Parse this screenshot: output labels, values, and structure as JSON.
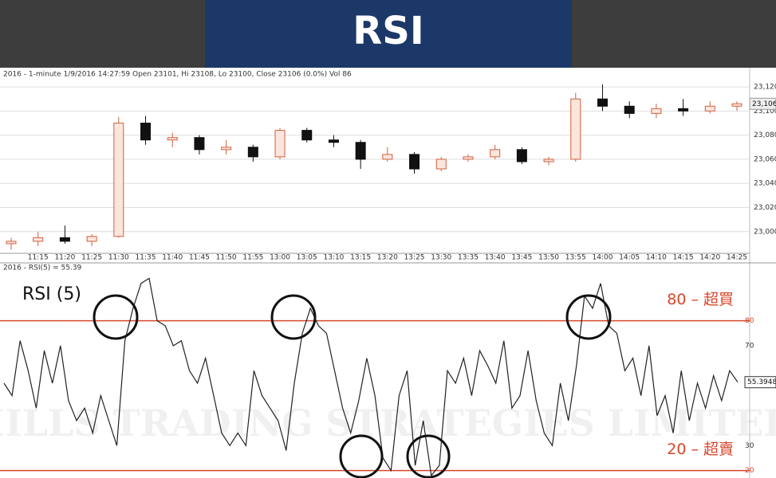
{
  "page_title": "RSI",
  "watermark": "HILLS TRADING STRATEGIES LIMITED",
  "chart_data": [
    {
      "type": "candlestick",
      "subtitle": "2016 - 1-minute 1/9/2016 14:27:59 Open 23101, Hi 23108, Lo 23100, Close 23106 (0.0%) Vol 86",
      "categories": [
        null,
        "11:15",
        "11:20",
        "11:25",
        "11:30",
        "11:35",
        "11:40",
        "11:45",
        "11:50",
        "11:55",
        "13:00",
        "13:05",
        "13:10",
        "13:15",
        "13:20",
        "13:25",
        "13:30",
        "13:35",
        "13:40",
        "13:45",
        "13:50",
        "13:55",
        "14:00",
        "14:05",
        "14:10",
        "14:15",
        "14:20",
        "14:25"
      ],
      "open": [
        22990,
        22992,
        22995,
        22992,
        22996,
        23090,
        23076,
        23078,
        23068,
        23070,
        23062,
        23084,
        23076,
        23074,
        23060,
        23064,
        23052,
        23060,
        23062,
        23068,
        23058,
        23060,
        23110,
        23104,
        23098,
        23102,
        23100,
        23104
      ],
      "high": [
        22995,
        23000,
        23005,
        22998,
        23095,
        23096,
        23082,
        23080,
        23076,
        23072,
        23086,
        23086,
        23080,
        23076,
        23070,
        23066,
        23062,
        23064,
        23072,
        23070,
        23062,
        23115,
        23122,
        23108,
        23106,
        23110,
        23108,
        23108
      ],
      "low": [
        22985,
        22988,
        22990,
        22988,
        22995,
        23072,
        23070,
        23064,
        23064,
        23058,
        23060,
        23074,
        23070,
        23052,
        23058,
        23048,
        23050,
        23058,
        23060,
        23056,
        23055,
        23058,
        23100,
        23094,
        23094,
        23096,
        23098,
        23100
      ],
      "close": [
        22992,
        22995,
        22992,
        22996,
        23090,
        23076,
        23078,
        23068,
        23070,
        23062,
        23084,
        23076,
        23074,
        23060,
        23064,
        23052,
        23060,
        23062,
        23068,
        23058,
        23060,
        23110,
        23104,
        23098,
        23102,
        23100,
        23104,
        23106
      ],
      "up_color": "#fbe6de",
      "down_color": "#111111",
      "outline_color": "#d0603f",
      "ylim": [
        22982,
        23126
      ],
      "yticks": [
        {
          "value": 23000,
          "label": "23,000"
        },
        {
          "value": 23020,
          "label": "23,020"
        },
        {
          "value": 23040,
          "label": "23,040"
        },
        {
          "value": 23060,
          "label": "23,060"
        },
        {
          "value": 23080,
          "label": "23,080"
        },
        {
          "value": 23100,
          "label": "23,100"
        },
        {
          "value": 23120,
          "label": "23,120"
        }
      ],
      "current_price": {
        "value": 23106,
        "label": "23,106"
      },
      "grid": true
    },
    {
      "type": "line",
      "title": "RSI (5)",
      "subtitle": "2016 - RSI(5) = 55.39",
      "values": [
        55,
        50,
        72,
        60,
        45,
        68,
        55,
        70,
        48,
        40,
        45,
        35,
        50,
        40,
        30,
        72,
        85,
        95,
        97,
        80,
        78,
        70,
        72,
        60,
        55,
        65,
        50,
        35,
        30,
        35,
        30,
        60,
        50,
        45,
        40,
        28,
        55,
        75,
        85,
        78,
        75,
        60,
        45,
        35,
        48,
        65,
        50,
        25,
        20,
        50,
        60,
        22,
        40,
        18,
        22,
        60,
        55,
        65,
        50,
        68,
        62,
        55,
        72,
        45,
        50,
        68,
        48,
        35,
        30,
        55,
        40,
        62,
        90,
        85,
        95,
        78,
        75,
        60,
        65,
        50,
        70,
        42,
        50,
        35,
        60,
        40,
        55,
        45,
        58,
        48,
        60,
        55.3948
      ],
      "color": "#222222",
      "ylim": [
        17,
        100
      ],
      "yticks": [
        20,
        30,
        70,
        80
      ],
      "annotations": [
        {
          "text": "80 – 超買",
          "value": 80
        },
        {
          "text": "20 – 超賣",
          "value": 20
        }
      ],
      "annotation_color": "#d9472b"
    }
  ]
}
